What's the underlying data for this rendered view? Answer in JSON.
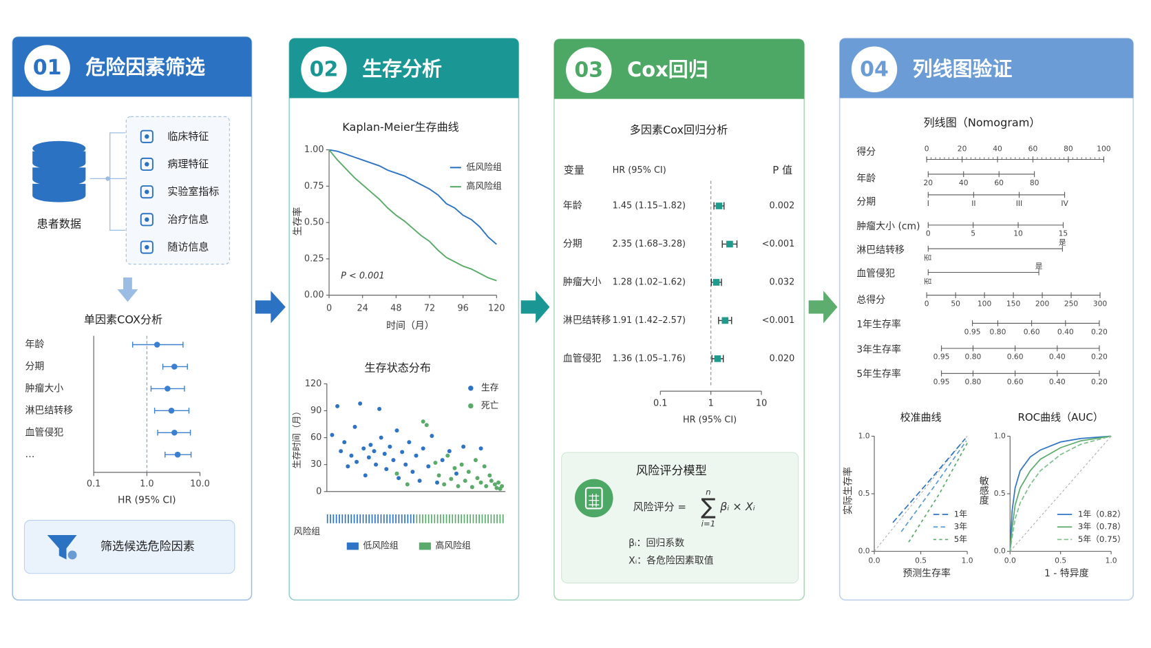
{
  "panels": [
    {
      "number": "01",
      "title": "危险因素筛选",
      "color": "#2b73c2",
      "source": "患者数据",
      "features": [
        "临床特征",
        "病理特征",
        "实验室指标",
        "治疗信息",
        "随访信息"
      ],
      "forest": {
        "title": "单因素COX分析",
        "rows": [
          "年龄",
          "分期",
          "肿瘤大小",
          "淋巴结转移",
          "血管侵犯",
          "…"
        ],
        "hr": [
          1.56,
          3.3,
          2.45,
          2.9,
          3.3,
          3.8
        ],
        "lower": [
          0.54,
          2.0,
          1.2,
          1.4,
          1.6,
          2.2
        ],
        "upper": [
          4.8,
          5.8,
          5.1,
          6.2,
          6.6,
          6.8
        ],
        "log": true,
        "xlim": [
          0.1,
          10
        ],
        "xticks": [
          0.1,
          {
            "value": 1,
            "label": "1.0"
          },
          {
            "value": 10,
            "label": "10.0"
          }
        ],
        "xlabel": "HR (95% CI)",
        "color": "#3b7fd0"
      },
      "action": "筛选候选危险因素"
    },
    {
      "number": "02",
      "title": "生存分析",
      "color": "#1a9794",
      "km": {
        "title": "Kaplan-Meier生存曲线",
        "x": [
          0,
          6,
          12,
          18,
          24,
          30,
          36,
          42,
          48,
          54,
          60,
          66,
          72,
          78,
          84,
          90,
          96,
          102,
          108,
          114,
          120
        ],
        "xlim": [
          0,
          120
        ],
        "xticks": [
          0,
          24,
          48,
          72,
          96,
          120
        ],
        "ylim": [
          0,
          1
        ],
        "yticks": [
          {
            "value": 0,
            "label": "0.00"
          },
          {
            "value": 0.25,
            "label": "0.25"
          },
          {
            "value": 0.5,
            "label": "0.50"
          },
          {
            "value": 0.75,
            "label": "0.75"
          },
          {
            "value": 1,
            "label": "1.00"
          }
        ],
        "xlabel": "时间（月）",
        "ylabel": "生存率",
        "annotation": "P < 0.001",
        "series": [
          {
            "name": "低风险组",
            "color": "#2f74c4",
            "values": [
              1,
              0.99,
              0.97,
              0.95,
              0.93,
              0.91,
              0.89,
              0.86,
              0.84,
              0.82,
              0.79,
              0.76,
              0.73,
              0.69,
              0.63,
              0.6,
              0.55,
              0.52,
              0.47,
              0.4,
              0.35
            ]
          },
          {
            "name": "高风险组",
            "color": "#5aab6a",
            "values": [
              1,
              0.93,
              0.87,
              0.81,
              0.76,
              0.71,
              0.66,
              0.6,
              0.55,
              0.51,
              0.46,
              0.41,
              0.37,
              0.31,
              0.26,
              0.23,
              0.2,
              0.18,
              0.15,
              0.12,
              0.1
            ]
          }
        ]
      },
      "scatter": {
        "title": "生存状态分布",
        "ylabel": "生存时间（月）",
        "ylim": [
          0,
          120
        ],
        "yticks": [
          0,
          30,
          60,
          90,
          120
        ],
        "xlim": [
          0,
          102
        ],
        "series": [
          {
            "name": "生存",
            "color": "#2f74c4",
            "x": [
              3,
              6,
              8,
              10,
              12,
              14,
              16,
              17,
              19,
              21,
              22,
              24,
              25,
              27,
              28,
              30,
              31,
              33,
              34,
              36,
              38,
              40,
              41,
              43,
              45,
              47,
              49,
              51,
              53,
              55,
              58,
              60,
              63,
              66,
              70,
              74,
              78,
              88
            ],
            "values": [
              63,
              95,
              45,
              55,
              28,
              40,
              72,
              33,
              98,
              48,
              18,
              38,
              52,
              45,
              30,
              92,
              60,
              42,
              25,
              50,
              35,
              68,
              15,
              44,
              30,
              55,
              22,
              40,
              12,
              48,
              28,
              62,
              10,
              35,
              45,
              20,
              50,
              48
            ]
          },
          {
            "name": "死亡",
            "color": "#5aab6a",
            "x": [
              55,
              57,
              62,
              64,
              67,
              69,
              71,
              73,
              75,
              77,
              79,
              81,
              83,
              85,
              86,
              88,
              90,
              91,
              93,
              94,
              96,
              97,
              98,
              99,
              100,
              40,
              46
            ],
            "values": [
              78,
              74,
              32,
              18,
              8,
              40,
              14,
              26,
              6,
              30,
              12,
              22,
              5,
              35,
              15,
              10,
              28,
              6,
              18,
              12,
              8,
              4,
              10,
              3,
              6,
              20,
              8
            ]
          }
        ]
      },
      "risk": {
        "label": "风险组",
        "groups": [
          {
            "name": "低风险组",
            "color": "#2f74c4"
          },
          {
            "name": "高风险组",
            "color": "#5aab6a"
          }
        ]
      }
    },
    {
      "number": "03",
      "title": "Cox回归",
      "color": "#4ea865",
      "cox": {
        "title": "多因素Cox回归分析",
        "headers": [
          "变量",
          "HR (95% CI)",
          "P 值"
        ],
        "rows": [
          {
            "name": "年龄",
            "hr_text": "1.45 (1.15–1.82)",
            "p": "0.002",
            "hr": 1.45,
            "lower": 1.15,
            "upper": 1.82
          },
          {
            "name": "分期",
            "hr_text": "2.35 (1.68–3.28)",
            "p": "<0.001",
            "hr": 2.35,
            "lower": 1.68,
            "upper": 3.28
          },
          {
            "name": "肿瘤大小",
            "hr_text": "1.28 (1.02–1.62)",
            "p": "0.032",
            "hr": 1.28,
            "lower": 1.02,
            "upper": 1.62
          },
          {
            "name": "淋巴结转移",
            "hr_text": "1.91 (1.42–2.57)",
            "p": "<0.001",
            "hr": 1.91,
            "lower": 1.42,
            "upper": 2.57
          },
          {
            "name": "血管侵犯",
            "hr_text": "1.36 (1.05–1.76)",
            "p": "0.020",
            "hr": 1.36,
            "lower": 1.05,
            "upper": 1.76
          }
        ],
        "log": true,
        "xlim": [
          0.1,
          10
        ],
        "xticks": [
          0.1,
          1,
          10
        ],
        "xlabel": "HR (95% CI)",
        "color": "#1f9a8c"
      },
      "model": {
        "title": "风险评分模型",
        "lhs": "风险评分 =",
        "sum_symbol": "∑",
        "sum_top": "n",
        "sum_bottom": "i=1",
        "term": "βᵢ × Xᵢ",
        "definitions": [
          "βᵢ：回归系数",
          "Xᵢ：各危险因素取值"
        ]
      }
    },
    {
      "number": "04",
      "title": "列线图验证",
      "color": "#6b9cd6",
      "nomogram": {
        "title": "列线图（Nomogram）",
        "rows": [
          {
            "label": "得分",
            "ticks": [
              0,
              20,
              40,
              60,
              80,
              100
            ]
          },
          {
            "label": "年龄",
            "ticks": [
              20,
              40,
              60,
              80
            ]
          },
          {
            "label": "分期",
            "ticks": [
              "I",
              "II",
              "III",
              "IV"
            ]
          },
          {
            "label": "肿瘤大小 (cm)",
            "ticks": [
              0,
              5,
              10,
              15
            ]
          },
          {
            "label": "淋巴结转移",
            "ticks": [
              "否",
              "是"
            ]
          },
          {
            "label": "血管侵犯",
            "ticks": [
              "否",
              "是"
            ]
          },
          {
            "label": "总得分",
            "ticks": [
              0,
              50,
              100,
              150,
              200,
              250,
              300
            ]
          },
          {
            "label": "1年生存率",
            "ticks": [
              0.95,
              {
                "value": 0.8,
                "label": "0.80"
              },
              {
                "value": 0.6,
                "label": "0.60"
              },
              {
                "value": 0.4,
                "label": "0.40"
              },
              {
                "value": 0.2,
                "label": "0.20"
              }
            ]
          },
          {
            "label": "3年生存率",
            "ticks": [
              0.95,
              {
                "value": 0.8,
                "label": "0.80"
              },
              {
                "value": 0.6,
                "label": "0.60"
              },
              {
                "value": 0.4,
                "label": "0.40"
              },
              {
                "value": 0.2,
                "label": "0.20"
              }
            ]
          },
          {
            "label": "5年生存率",
            "ticks": [
              0.95,
              {
                "value": 0.8,
                "label": "0.80"
              },
              {
                "value": 0.6,
                "label": "0.60"
              },
              {
                "value": 0.4,
                "label": "0.40"
              },
              {
                "value": 0.2,
                "label": "0.20"
              }
            ]
          }
        ]
      },
      "calibration": {
        "title": "校准曲线",
        "xlabel": "预测生存率",
        "ylabel": "实际生存率",
        "xlim": [
          0,
          1
        ],
        "ylim": [
          0,
          1
        ],
        "xticks": [
          {
            "value": 0,
            "label": "0.0"
          },
          {
            "value": 0.5,
            "label": "0.5"
          },
          {
            "value": 1,
            "label": "1.0"
          }
        ],
        "yticks": [
          {
            "value": 0,
            "label": "0.0"
          },
          {
            "value": 0.5,
            "label": "0.5"
          },
          {
            "value": 1,
            "label": "1.0"
          }
        ],
        "series": [
          {
            "name": "1年",
            "color": "#2f74c4",
            "x": [
              0.2,
              0.6,
              0.98
            ],
            "values": [
              0.25,
              0.62,
              0.98
            ]
          },
          {
            "name": "3年",
            "color": "#5b9bd5",
            "x": [
              0.29,
              0.65,
              0.99
            ],
            "values": [
              0.17,
              0.57,
              0.96
            ]
          },
          {
            "name": "5年",
            "color": "#5aab6a",
            "x": [
              0.37,
              0.7,
              1.0
            ],
            "values": [
              0.08,
              0.5,
              0.94
            ]
          }
        ]
      },
      "roc": {
        "title": "ROC曲线（AUC）",
        "xlabel": "1 - 特异度",
        "ylabel": "敏感度",
        "xlim": [
          0,
          1
        ],
        "ylim": [
          0,
          1
        ],
        "xticks": [
          {
            "value": 0,
            "label": "0.0"
          },
          {
            "value": 0.5,
            "label": "0.5"
          },
          {
            "value": 1,
            "label": "1.0"
          }
        ],
        "yticks": [
          {
            "value": 0,
            "label": "0.0"
          },
          {
            "value": 0.5,
            "label": "0.5"
          },
          {
            "value": 1,
            "label": "1.0"
          }
        ],
        "series": [
          {
            "name": "1年（0.82）",
            "color": "#2f74c4",
            "x": [
              0,
              0.02,
              0.05,
              0.1,
              0.2,
              0.3,
              0.5,
              0.7,
              1
            ],
            "values": [
              0,
              0.35,
              0.55,
              0.7,
              0.82,
              0.88,
              0.95,
              0.98,
              1
            ]
          },
          {
            "name": "3年（0.78）",
            "color": "#5aab6a",
            "x": [
              0,
              0.02,
              0.05,
              0.1,
              0.2,
              0.3,
              0.5,
              0.7,
              1
            ],
            "values": [
              0,
              0.2,
              0.4,
              0.55,
              0.7,
              0.8,
              0.9,
              0.96,
              1
            ]
          },
          {
            "name": "5年（0.75）",
            "color": "#7cc08a",
            "x": [
              0,
              0.02,
              0.05,
              0.1,
              0.2,
              0.3,
              0.5,
              0.7,
              1
            ],
            "values": [
              0,
              0.12,
              0.28,
              0.42,
              0.58,
              0.7,
              0.84,
              0.93,
              1
            ]
          }
        ]
      }
    }
  ]
}
